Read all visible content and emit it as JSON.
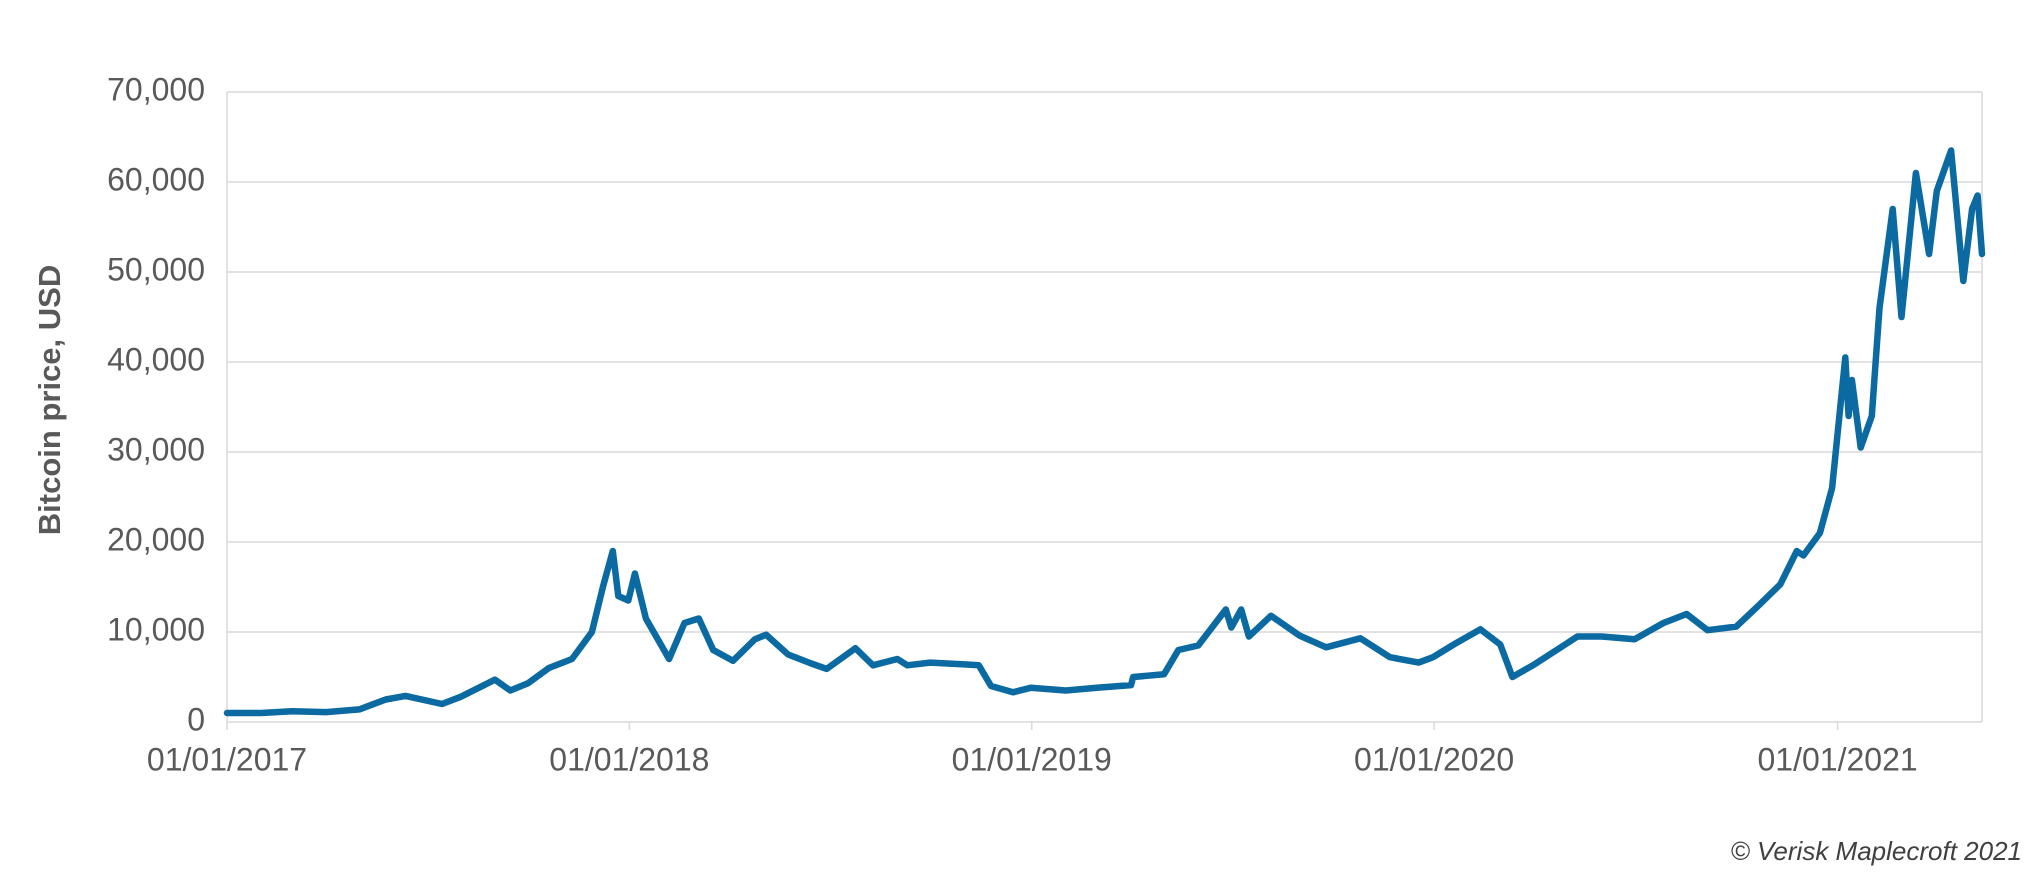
{
  "chart_data": {
    "type": "line",
    "y_label": "Bitcoin price, USD",
    "source": "© Verisk Maplecroft 2021",
    "x": [
      "2017-01-01",
      "2017-02-01",
      "2017-03-01",
      "2017-04-01",
      "2017-05-01",
      "2017-05-25",
      "2017-06-12",
      "2017-07-15",
      "2017-08-01",
      "2017-09-01",
      "2017-09-15",
      "2017-10-01",
      "2017-10-20",
      "2017-11-10",
      "2017-11-28",
      "2017-12-08",
      "2017-12-17",
      "2017-12-22",
      "2017-12-31",
      "2018-01-06",
      "2018-01-16",
      "2018-02-06",
      "2018-02-20",
      "2018-03-05",
      "2018-03-18",
      "2018-04-05",
      "2018-04-25",
      "2018-05-05",
      "2018-05-25",
      "2018-06-15",
      "2018-06-29",
      "2018-07-25",
      "2018-08-10",
      "2018-09-01",
      "2018-09-10",
      "2018-10-01",
      "2018-11-01",
      "2018-11-14",
      "2018-11-25",
      "2018-12-15",
      "2018-12-31",
      "2019-02-01",
      "2019-03-01",
      "2019-04-01",
      "2019-04-03",
      "2019-05-01",
      "2019-05-14",
      "2019-06-01",
      "2019-06-26",
      "2019-07-01",
      "2019-07-10",
      "2019-07-17",
      "2019-08-06",
      "2019-09-01",
      "2019-09-25",
      "2019-10-26",
      "2019-11-22",
      "2019-12-18",
      "2019-12-31",
      "2020-01-20",
      "2020-02-12",
      "2020-03-01",
      "2020-03-12",
      "2020-04-01",
      "2020-04-30",
      "2020-05-10",
      "2020-06-01",
      "2020-07-01",
      "2020-07-27",
      "2020-08-17",
      "2020-09-05",
      "2020-10-01",
      "2020-10-21",
      "2020-11-10",
      "2020-11-25",
      "2020-12-01",
      "2020-12-16",
      "2020-12-27",
      "2021-01-08",
      "2021-01-11",
      "2021-01-14",
      "2021-01-22",
      "2021-02-01",
      "2021-02-08",
      "2021-02-20",
      "2021-02-28",
      "2021-03-13",
      "2021-03-25",
      "2021-04-01",
      "2021-04-14",
      "2021-04-25",
      "2021-05-03",
      "2021-05-08",
      "2021-05-12"
    ],
    "series": [
      {
        "name": "Bitcoin price",
        "color": "#0a6aa1",
        "values": [
          1000,
          1000,
          1200,
          1100,
          1400,
          2500,
          2900,
          2000,
          2800,
          4700,
          3500,
          4300,
          6000,
          7000,
          10000,
          15000,
          19000,
          14000,
          13500,
          16500,
          11500,
          7000,
          11000,
          11500,
          8000,
          6800,
          9200,
          9700,
          7500,
          6500,
          5900,
          8200,
          6300,
          7000,
          6300,
          6600,
          6400,
          6300,
          4000,
          3300,
          3800,
          3500,
          3800,
          4100,
          5000,
          5300,
          8000,
          8500,
          12500,
          10500,
          12500,
          9500,
          11800,
          9600,
          8300,
          9300,
          7200,
          6600,
          7200,
          8700,
          10300,
          8600,
          5000,
          6400,
          8700,
          9500,
          9500,
          9200,
          11000,
          12000,
          10200,
          10600,
          12900,
          15300,
          19000,
          18500,
          21000,
          26000,
          40500,
          34000,
          38000,
          30500,
          34000,
          46000,
          57000,
          45000,
          61000,
          52000,
          59000,
          63500,
          49000,
          57000,
          58500,
          52000
        ]
      }
    ],
    "xlim": [
      "2017-01-01",
      "2021-05-12"
    ],
    "xticks": [
      {
        "value": "2017-01-01",
        "label": "01/01/2017"
      },
      {
        "value": "2018-01-01",
        "label": "01/01/2018"
      },
      {
        "value": "2019-01-01",
        "label": "01/01/2019"
      },
      {
        "value": "2020-01-01",
        "label": "01/01/2020"
      },
      {
        "value": "2021-01-01",
        "label": "01/01/2021"
      }
    ],
    "ylim": [
      0,
      70000
    ],
    "yticks": [
      0,
      {
        "value": 10000,
        "label": "10,000"
      },
      {
        "value": 20000,
        "label": "20,000"
      },
      {
        "value": 30000,
        "label": "30,000"
      },
      {
        "value": 40000,
        "label": "40,000"
      },
      {
        "value": 50000,
        "label": "50,000"
      },
      {
        "value": 60000,
        "label": "60,000"
      },
      {
        "value": 70000,
        "label": "70,000"
      }
    ],
    "grid": true
  }
}
